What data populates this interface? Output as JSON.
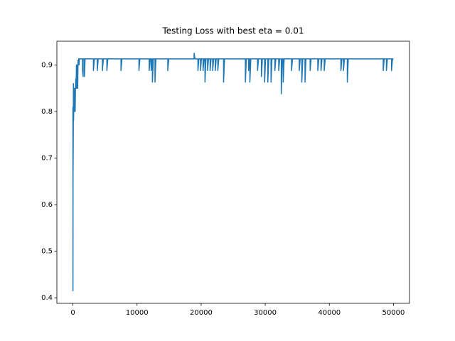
{
  "chart_data": {
    "type": "line",
    "title": "Testing Loss with best eta = 0.01",
    "xlim": [
      -2500,
      52500
    ],
    "ylim": [
      0.388,
      0.951
    ],
    "xticks": [
      0,
      10000,
      20000,
      30000,
      40000,
      50000
    ],
    "yticks": [
      0.4,
      0.5,
      0.6,
      0.7,
      0.8,
      0.9
    ],
    "series": [
      {
        "color": "#1f77b4",
        "x": [
          0,
          10,
          20,
          40,
          60,
          80,
          100,
          130,
          160,
          200,
          260,
          300,
          350,
          400,
          450,
          500,
          550,
          600,
          650,
          700,
          750,
          800,
          850,
          900,
          950,
          1000,
          1100,
          1200,
          1500,
          1500,
          1600,
          1600,
          1700,
          1800,
          1800,
          1900,
          3200,
          3200,
          3350,
          3800,
          3800,
          3950,
          4600,
          4600,
          4750,
          5300,
          5300,
          5450,
          7500,
          7500,
          7650,
          10300,
          10300,
          10450,
          11900,
          11900,
          12050,
          12200,
          12200,
          12350,
          12400,
          12400,
          12550,
          12800,
          12800,
          12950,
          14800,
          14800,
          14950,
          18900,
          18900,
          19050,
          19500,
          19500,
          19650,
          19900,
          19900,
          20050,
          20300,
          20300,
          20450,
          20600,
          20600,
          20750,
          21000,
          21000,
          21150,
          21400,
          21400,
          21550,
          21800,
          21800,
          21950,
          22200,
          22200,
          22350,
          22600,
          22600,
          22750,
          23500,
          23500,
          23650,
          26900,
          26900,
          27050,
          27400,
          27400,
          27550,
          27600,
          27600,
          27750,
          28800,
          28800,
          28950,
          29400,
          29400,
          29550,
          29900,
          29900,
          30050,
          30400,
          30400,
          30550,
          30900,
          30900,
          31050,
          31500,
          31500,
          31650,
          32100,
          32100,
          32250,
          32500,
          32500,
          32650,
          32800,
          32800,
          32950,
          34100,
          34100,
          34250,
          35300,
          35300,
          35450,
          35700,
          35700,
          35850,
          36200,
          36200,
          36350,
          37000,
          37000,
          37150,
          38200,
          38200,
          38350,
          38700,
          38700,
          38850,
          39200,
          39200,
          39350,
          41800,
          41800,
          41950,
          42200,
          42200,
          42350,
          42800,
          42800,
          42950,
          48400,
          48400,
          48550,
          48900,
          48900,
          49050,
          49700,
          49700,
          49850,
          50000
        ],
        "values": [
          0.81,
          0.415,
          0.66,
          0.7,
          0.75,
          0.86,
          0.78,
          0.8,
          0.81,
          0.81,
          0.85,
          0.8,
          0.8,
          0.85,
          0.87,
          0.85,
          0.9,
          0.85,
          0.88,
          0.9,
          0.85,
          0.91,
          0.9,
          0.913,
          0.9,
          0.913,
          0.913,
          0.913,
          0.913,
          0.888,
          0.875,
          0.913,
          0.913,
          0.913,
          0.875,
          0.913,
          0.913,
          0.888,
          0.913,
          0.913,
          0.888,
          0.913,
          0.913,
          0.888,
          0.913,
          0.913,
          0.888,
          0.913,
          0.913,
          0.888,
          0.913,
          0.913,
          0.888,
          0.913,
          0.913,
          0.888,
          0.913,
          0.913,
          0.888,
          0.913,
          0.913,
          0.863,
          0.913,
          0.913,
          0.863,
          0.913,
          0.913,
          0.888,
          0.913,
          0.913,
          0.925,
          0.913,
          0.913,
          0.888,
          0.913,
          0.913,
          0.888,
          0.913,
          0.913,
          0.888,
          0.913,
          0.913,
          0.863,
          0.913,
          0.913,
          0.888,
          0.913,
          0.913,
          0.888,
          0.913,
          0.913,
          0.888,
          0.913,
          0.913,
          0.888,
          0.913,
          0.913,
          0.888,
          0.913,
          0.913,
          0.863,
          0.913,
          0.913,
          0.863,
          0.913,
          0.913,
          0.888,
          0.913,
          0.913,
          0.863,
          0.913,
          0.913,
          0.888,
          0.913,
          0.913,
          0.875,
          0.913,
          0.913,
          0.863,
          0.913,
          0.913,
          0.863,
          0.913,
          0.913,
          0.863,
          0.913,
          0.913,
          0.888,
          0.913,
          0.913,
          0.888,
          0.913,
          0.913,
          0.838,
          0.913,
          0.913,
          0.863,
          0.913,
          0.913,
          0.888,
          0.913,
          0.913,
          0.888,
          0.913,
          0.913,
          0.863,
          0.913,
          0.913,
          0.863,
          0.913,
          0.913,
          0.888,
          0.913,
          0.913,
          0.888,
          0.913,
          0.913,
          0.888,
          0.913,
          0.913,
          0.888,
          0.913,
          0.913,
          0.888,
          0.913,
          0.913,
          0.888,
          0.913,
          0.913,
          0.863,
          0.913,
          0.913,
          0.888,
          0.913,
          0.913,
          0.888,
          0.913,
          0.913,
          0.888,
          0.913,
          0.913
        ]
      }
    ]
  }
}
